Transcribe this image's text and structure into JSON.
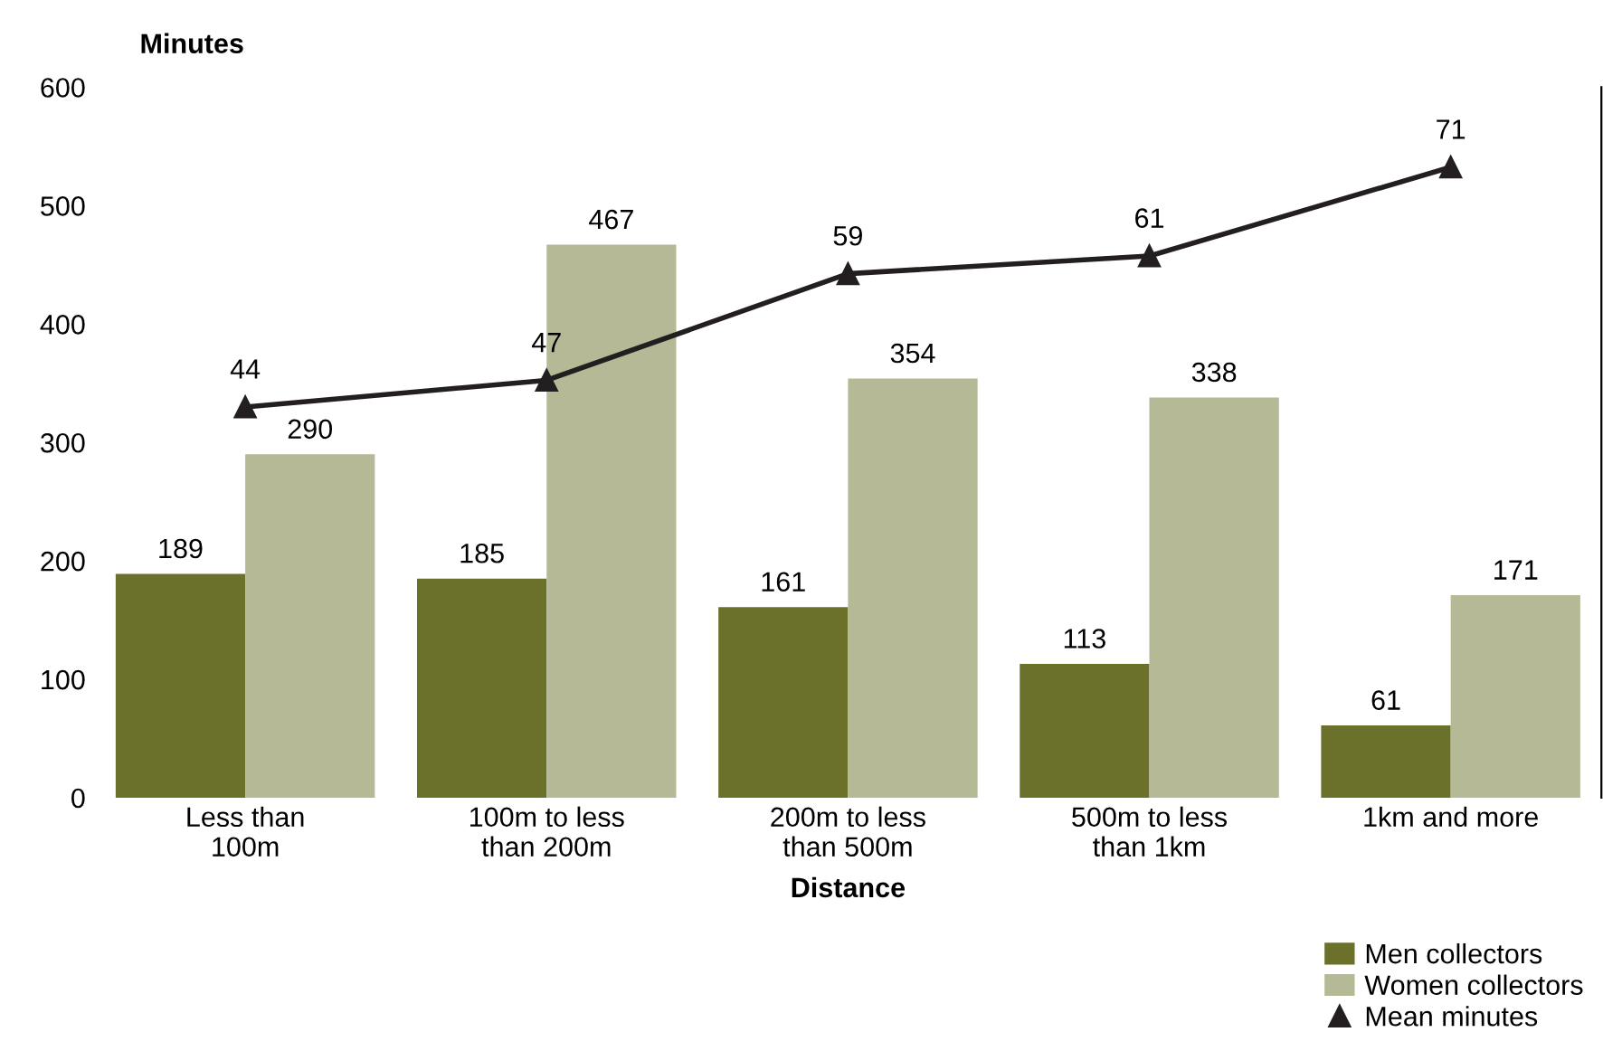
{
  "chart_data": {
    "type": "bar",
    "ylabel": "Minutes",
    "xlabel": "Distance",
    "categories": [
      "Less than\n100m",
      "100m to less\nthan 200m",
      "200m to less\nthan 500m",
      "500m to less\nthan 1km",
      "1km and more"
    ],
    "series": [
      {
        "name": "Men collectors",
        "color": "#6b702b",
        "values": [
          189,
          185,
          161,
          113,
          61
        ]
      },
      {
        "name": "Women collectors",
        "color": "#b5b995",
        "values": [
          290,
          467,
          354,
          338,
          171
        ]
      },
      {
        "name": "Mean minutes",
        "type": "line",
        "axis": "y2",
        "color": "#231f20",
        "marker": "triangle",
        "values": [
          44,
          47,
          59,
          61,
          71
        ]
      }
    ],
    "ylim": [
      0,
      600
    ],
    "yticks": [
      0,
      100,
      200,
      300,
      400,
      500,
      600
    ],
    "y2lim": [
      0,
      80
    ],
    "data_labels": true,
    "grid": false,
    "legend": "bottom right"
  }
}
